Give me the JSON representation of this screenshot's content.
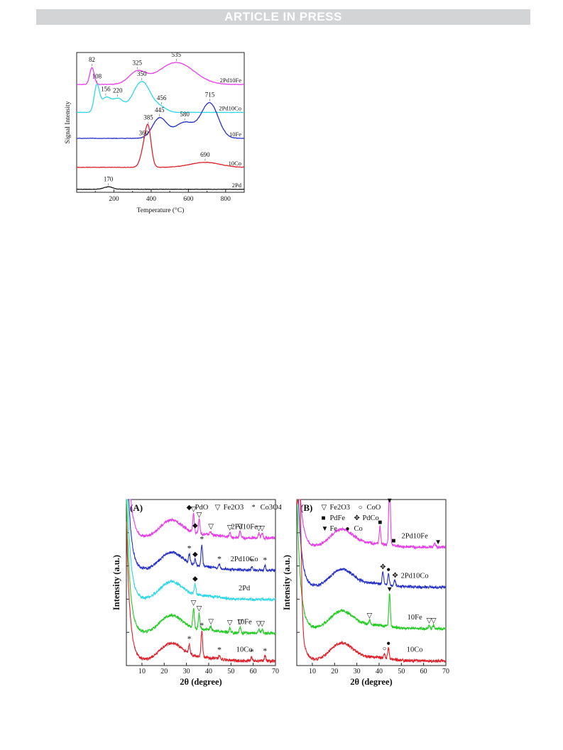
{
  "header": {
    "banner_text": "ARTICLE IN PRESS"
  },
  "colors": {
    "magenta": "#e83ee8",
    "cyan": "#2fd7e8",
    "blue": "#2530c8",
    "red": "#e0202a",
    "black": "#1a1a1a",
    "green": "#22cc22"
  },
  "chart_data": [
    {
      "type": "line",
      "id": "tpr",
      "xlabel": "Temperature (°C)",
      "ylabel": "Signal Intensity",
      "xlim": [
        0,
        900
      ],
      "x_ticks": [
        "200",
        "400",
        "600",
        "800"
      ],
      "y_ticks_labeled": false,
      "legend": "none (curve labels at right end)",
      "series": [
        {
          "name": "2Pd10Fe",
          "color": "magenta",
          "baseline": 5.4,
          "peaks": [
            [
              82,
              0.85,
              12
            ],
            [
              325,
              0.6,
              45
            ],
            [
              535,
              1.1,
              95
            ]
          ],
          "annotations": [
            [
              "82",
              82
            ],
            [
              "325",
              325
            ],
            [
              "535",
              535
            ]
          ]
        },
        {
          "name": "2Pd10Co",
          "color": "cyan",
          "baseline": 4.0,
          "peaks": [
            [
              108,
              1.3,
              14
            ],
            [
              156,
              0.7,
              25
            ],
            [
              220,
              0.65,
              30
            ],
            [
              350,
              1.55,
              48
            ],
            [
              456,
              0.2,
              30
            ]
          ],
          "annotations": [
            [
              "108",
              108
            ],
            [
              "156",
              156
            ],
            [
              "220",
              220
            ],
            [
              "350",
              350
            ],
            [
              "456",
              456
            ]
          ]
        },
        {
          "name": "10Fe",
          "color": "blue",
          "baseline": 2.7,
          "peaks": [
            [
              445,
              1.0,
              38
            ],
            [
              580,
              0.8,
              55
            ],
            [
              715,
              1.75,
              45
            ]
          ],
          "annotations": [
            [
              "445",
              445
            ],
            [
              "580",
              580
            ],
            [
              "715",
              715
            ]
          ]
        },
        {
          "name": "10Co",
          "color": "red",
          "baseline": 1.25,
          "peaks": [
            [
              360,
              0.8,
              18
            ],
            [
              385,
              1.8,
              16
            ],
            [
              690,
              0.25,
              80
            ]
          ],
          "annotations": [
            [
              "360",
              360
            ],
            [
              "385",
              385
            ],
            [
              "690",
              690
            ]
          ]
        },
        {
          "name": "2Pd",
          "color": "black",
          "baseline": 0.15,
          "peaks": [
            [
              170,
              0.12,
              25
            ]
          ],
          "annotations": [
            [
              "170",
              170
            ]
          ]
        }
      ]
    },
    {
      "type": "line",
      "id": "xrd-A",
      "panel_label": "(A)",
      "xlabel": "2θ (degree)",
      "ylabel": "Intensity (a.u.)",
      "xlim": [
        3,
        70
      ],
      "x_ticks": [
        "10",
        "20",
        "30",
        "40",
        "50",
        "60",
        "70"
      ],
      "legend_items": [
        {
          "marker": "◆",
          "label": "PdO"
        },
        {
          "marker": "▽",
          "label": "Fe2O3"
        },
        {
          "marker": "*",
          "label": "Co3O4"
        }
      ],
      "series": [
        {
          "name": "2Pd10Fe",
          "color": "magenta",
          "baseline": 4.15,
          "reflections": [
            [
              33.2,
              0.6
            ],
            [
              35.7,
              0.45
            ],
            [
              40.9,
              0.12
            ],
            [
              49.5,
              0.15
            ],
            [
              54.1,
              0.2
            ],
            [
              62.5,
              0.15
            ],
            [
              64.0,
              0.15
            ]
          ],
          "markers": [
            [
              "▽",
              33.2
            ],
            [
              "▽",
              35.7
            ],
            [
              "◆",
              33.9
            ],
            [
              "▽",
              41
            ],
            [
              "▽",
              49.5
            ],
            [
              "▽",
              54.1
            ],
            [
              "▽",
              62.5
            ],
            [
              "▽",
              64
            ]
          ]
        },
        {
          "name": "2Pd10Co",
          "color": "blue",
          "baseline": 3.1,
          "reflections": [
            [
              31.3,
              0.3
            ],
            [
              33.9,
              0.2
            ],
            [
              36.9,
              0.7
            ],
            [
              44.8,
              0.12
            ],
            [
              59.4,
              0.12
            ],
            [
              65.3,
              0.15
            ]
          ],
          "markers": [
            [
              "*",
              31.3
            ],
            [
              "◆",
              33.9
            ],
            [
              "*",
              36.9
            ],
            [
              "*",
              44.8
            ],
            [
              "*",
              59.4
            ],
            [
              "*",
              65.3
            ]
          ]
        },
        {
          "name": "2Pd",
          "color": "cyan",
          "baseline": 2.15,
          "reflections": [
            [
              33.9,
              0.35
            ]
          ],
          "markers": [
            [
              "◆",
              33.9
            ]
          ]
        },
        {
          "name": "10Fe",
          "color": "green",
          "baseline": 1.05,
          "reflections": [
            [
              33.2,
              0.65
            ],
            [
              35.7,
              0.5
            ],
            [
              40.9,
              0.12
            ],
            [
              49.5,
              0.15
            ],
            [
              54.1,
              0.2
            ],
            [
              62.5,
              0.15
            ],
            [
              64.0,
              0.15
            ]
          ],
          "markers": [
            [
              "▽",
              33.2
            ],
            [
              "▽",
              35.7
            ],
            [
              "▽",
              41
            ],
            [
              "▽",
              49.5
            ],
            [
              "▽",
              54.1
            ],
            [
              "▽",
              62.5
            ],
            [
              "▽",
              64
            ]
          ]
        },
        {
          "name": "10Co",
          "color": "red",
          "baseline": 0.15,
          "reflections": [
            [
              31.3,
              0.3
            ],
            [
              36.9,
              0.85
            ],
            [
              44.8,
              0.12
            ],
            [
              59.4,
              0.12
            ],
            [
              65.3,
              0.15
            ]
          ],
          "markers": [
            [
              "*",
              31.3
            ],
            [
              "*",
              36.9
            ],
            [
              "*",
              44.8
            ],
            [
              "*",
              59.4
            ],
            [
              "*",
              65.3
            ]
          ]
        }
      ]
    },
    {
      "type": "line",
      "id": "xrd-B",
      "panel_label": "(B)",
      "xlabel": "2θ (degree)",
      "ylabel": "Intensity (a.u.)",
      "xlim": [
        3,
        70
      ],
      "x_ticks": [
        "10",
        "20",
        "30",
        "40",
        "50",
        "60",
        "70"
      ],
      "legend_items": [
        {
          "marker": "▽",
          "label": "Fe2O3"
        },
        {
          "marker": "○",
          "label": "CoO"
        },
        {
          "marker": "■",
          "label": "PdFe"
        },
        {
          "marker": "✥",
          "label": "PdCo"
        },
        {
          "marker": "▼",
          "label": "Fe"
        },
        {
          "marker": "●",
          "label": "Co"
        }
      ],
      "series": [
        {
          "name": "2Pd10Fe",
          "color": "magenta",
          "baseline": 3.85,
          "reflections": [
            [
              40.4,
              0.55
            ],
            [
              44.7,
              2.3
            ],
            [
              65.0,
              0.15
            ]
          ],
          "markers": [
            [
              "■",
              40.4
            ],
            [
              "▼",
              44.7
            ],
            [
              "■",
              46.5
            ],
            [
              "▼",
              66.5
            ]
          ]
        },
        {
          "name": "2Pd10Co",
          "color": "blue",
          "baseline": 2.55,
          "reflections": [
            [
              41.7,
              0.4
            ],
            [
              44.2,
              0.35
            ],
            [
              47.0,
              0.2
            ]
          ],
          "markers": [
            [
              "✥",
              41.7
            ],
            [
              "●",
              44.2
            ],
            [
              "✥",
              47.2
            ]
          ]
        },
        {
          "name": "10Fe",
          "color": "green",
          "baseline": 1.2,
          "reflections": [
            [
              35.7,
              0.12
            ],
            [
              44.7,
              1.05
            ],
            [
              62.5,
              0.1
            ],
            [
              64.5,
              0.1
            ]
          ],
          "markers": [
            [
              "▽",
              35.7
            ],
            [
              "▼",
              44.7
            ],
            [
              "▽",
              62.5
            ],
            [
              "▽",
              64.5
            ]
          ]
        },
        {
          "name": "10Co",
          "color": "red",
          "baseline": 0.15,
          "reflections": [
            [
              4.3,
              3.9
            ],
            [
              42.4,
              0.15
            ],
            [
              44.2,
              0.35
            ]
          ],
          "markers": [
            [
              "○",
              42.4
            ],
            [
              "●",
              44.2
            ]
          ]
        }
      ]
    }
  ]
}
